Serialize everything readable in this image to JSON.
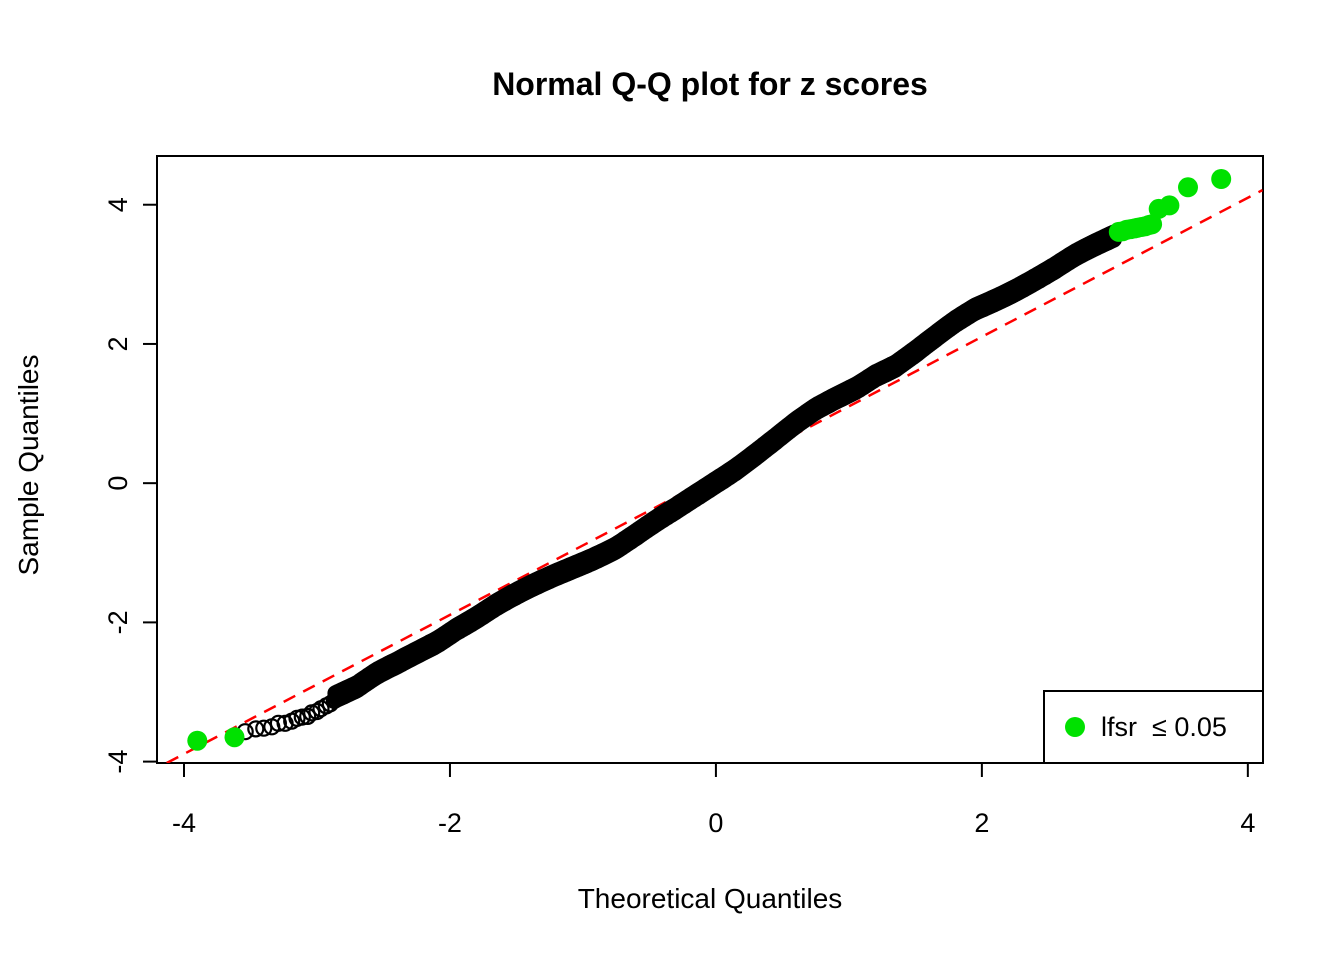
{
  "title": "Normal Q-Q plot for z scores",
  "chart_data": {
    "type": "scatter",
    "title": "Normal Q-Q plot for z scores",
    "xlabel": "Theoretical Quantiles",
    "ylabel": "Sample Quantiles",
    "xlim": [
      -4.203,
      4.114
    ],
    "ylim": [
      -4.02,
      4.7
    ],
    "x_ticks": [
      -4,
      -2,
      0,
      2,
      4
    ],
    "y_ticks": [
      -4,
      -2,
      0,
      2,
      4
    ],
    "grid": false,
    "colors": {
      "points": "#000000",
      "significant": "#00E100",
      "reference_line": "#FF0000",
      "axis": "#000000",
      "background": "#ffffff"
    },
    "reference_line": {
      "style": "dashed",
      "from": [
        -4.13,
        -4.02
      ],
      "to": [
        4.11,
        4.21
      ]
    },
    "legend": {
      "position": "bottomright",
      "label": "lfsr  ≤ 0.05",
      "marker": "filled-circle"
    },
    "qq_curve": [
      [
        -2.86,
        -3.07
      ],
      [
        -2.7,
        -2.95
      ],
      [
        -2.55,
        -2.77
      ],
      [
        -2.4,
        -2.62
      ],
      [
        -2.25,
        -2.45
      ],
      [
        -2.1,
        -2.28
      ],
      [
        -1.95,
        -2.08
      ],
      [
        -1.8,
        -1.92
      ],
      [
        -1.65,
        -1.75
      ],
      [
        -1.5,
        -1.6
      ],
      [
        -1.35,
        -1.45
      ],
      [
        -1.2,
        -1.3
      ],
      [
        -1.05,
        -1.16
      ],
      [
        -0.9,
        -1.03
      ],
      [
        -0.75,
        -0.9
      ],
      [
        -0.6,
        -0.73
      ],
      [
        -0.45,
        -0.55
      ],
      [
        -0.3,
        -0.37
      ],
      [
        -0.15,
        -0.17
      ],
      [
        0.0,
        0.03
      ],
      [
        0.15,
        0.22
      ],
      [
        0.3,
        0.42
      ],
      [
        0.45,
        0.62
      ],
      [
        0.6,
        0.83
      ],
      [
        0.75,
        1.03
      ],
      [
        0.9,
        1.2
      ],
      [
        1.05,
        1.36
      ],
      [
        1.2,
        1.55
      ],
      [
        1.35,
        1.68
      ],
      [
        1.5,
        1.87
      ],
      [
        1.65,
        2.08
      ],
      [
        1.8,
        2.3
      ],
      [
        1.95,
        2.5
      ],
      [
        2.1,
        2.65
      ],
      [
        2.25,
        2.8
      ],
      [
        2.4,
        2.95
      ],
      [
        2.55,
        3.1
      ],
      [
        2.7,
        3.27
      ],
      [
        2.85,
        3.42
      ],
      [
        2.95,
        3.52
      ],
      [
        3.0,
        3.57
      ]
    ],
    "dense_range": [
      -2.86,
      3.0
    ],
    "lower_tail_points": [
      [
        -3.54,
        -3.57
      ],
      [
        -3.46,
        -3.53
      ],
      [
        -3.4,
        -3.52
      ],
      [
        -3.34,
        -3.5
      ],
      [
        -3.29,
        -3.45
      ],
      [
        -3.24,
        -3.45
      ],
      [
        -3.19,
        -3.42
      ],
      [
        -3.15,
        -3.38
      ],
      [
        -3.11,
        -3.36
      ],
      [
        -3.07,
        -3.35
      ],
      [
        -3.04,
        -3.3
      ],
      [
        -3.0,
        -3.28
      ],
      [
        -2.97,
        -3.24
      ],
      [
        -2.93,
        -3.2
      ],
      [
        -2.9,
        -3.17
      ],
      [
        -2.87,
        -3.12
      ]
    ],
    "upper_tail_points": [
      [
        2.88,
        3.45
      ],
      [
        2.92,
        3.49
      ],
      [
        2.95,
        3.52
      ],
      [
        2.98,
        3.55
      ],
      [
        3.01,
        3.57
      ],
      [
        3.04,
        3.6
      ]
    ],
    "significant_points": [
      [
        -3.9,
        -3.7
      ],
      [
        -3.62,
        -3.65
      ],
      [
        3.03,
        3.61
      ],
      [
        3.06,
        3.62
      ],
      [
        3.09,
        3.64
      ],
      [
        3.12,
        3.65
      ],
      [
        3.15,
        3.66
      ],
      [
        3.17,
        3.67
      ],
      [
        3.2,
        3.68
      ],
      [
        3.23,
        3.69
      ],
      [
        3.26,
        3.71
      ],
      [
        3.28,
        3.72
      ],
      [
        3.33,
        3.94
      ],
      [
        3.41,
        3.99
      ],
      [
        3.55,
        4.25
      ],
      [
        3.8,
        4.37
      ]
    ]
  }
}
